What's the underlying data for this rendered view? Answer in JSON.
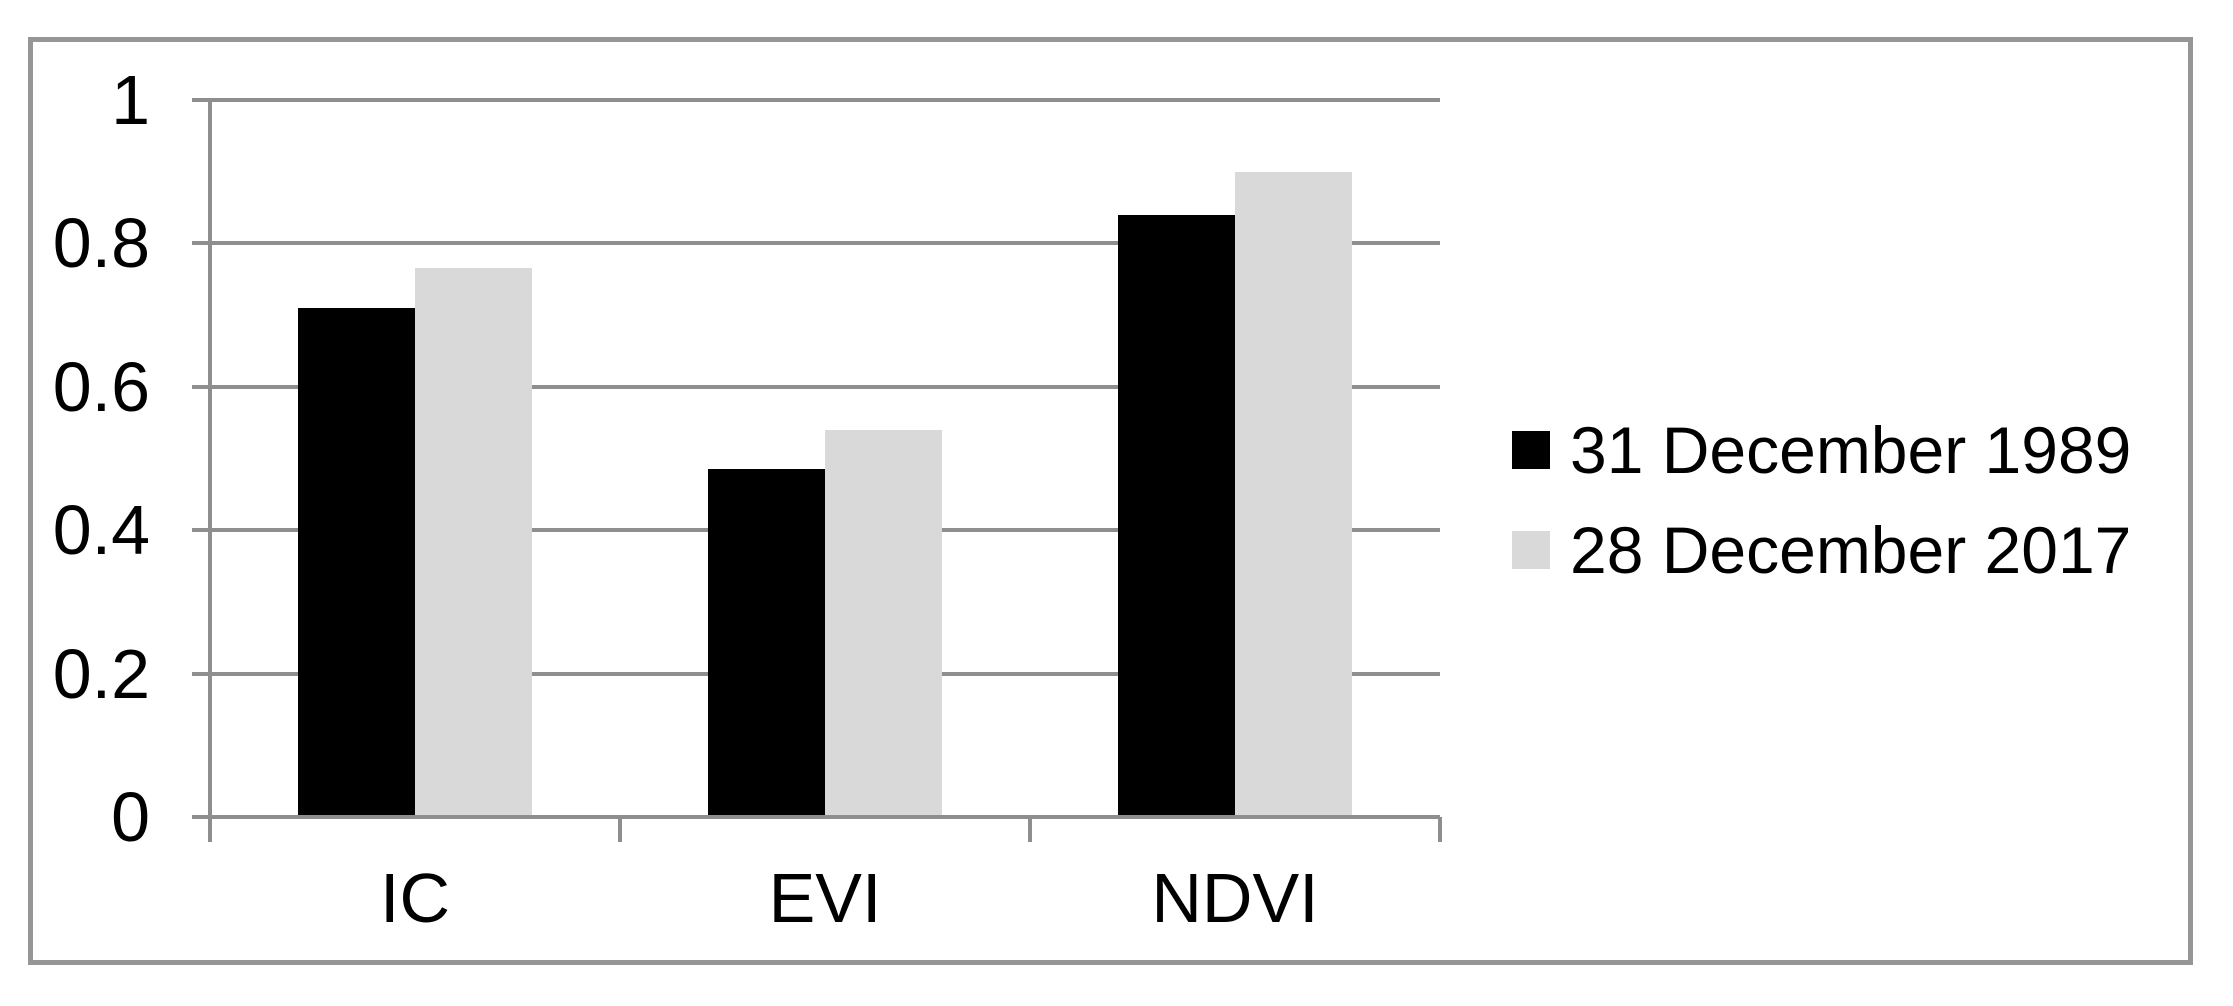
{
  "chart_data": {
    "type": "bar",
    "title": "",
    "xlabel": "",
    "ylabel": "",
    "categories": [
      "IC",
      "EVI",
      "NDVI"
    ],
    "series": [
      {
        "name": "31 December 1989",
        "color": "#000000",
        "values": [
          0.71,
          0.485,
          0.84
        ]
      },
      {
        "name": "28 December 2017",
        "color": "#d9d9d9",
        "values": [
          0.765,
          0.54,
          0.9
        ]
      }
    ],
    "ylim": [
      0,
      1
    ],
    "yticks": [
      0,
      0.2,
      0.4,
      0.6,
      0.8,
      1
    ],
    "ytick_labels": [
      "0",
      "0.2",
      "0.4",
      "0.6",
      "0.8",
      "1"
    ],
    "grid": true,
    "legend_position": "right",
    "plot_background": "#ffffff"
  },
  "colors": {
    "axis": "#8e8e8e",
    "gridline": "#8e8e8e",
    "frame_border": "#969696",
    "text": "#000000",
    "background": "#ffffff"
  }
}
